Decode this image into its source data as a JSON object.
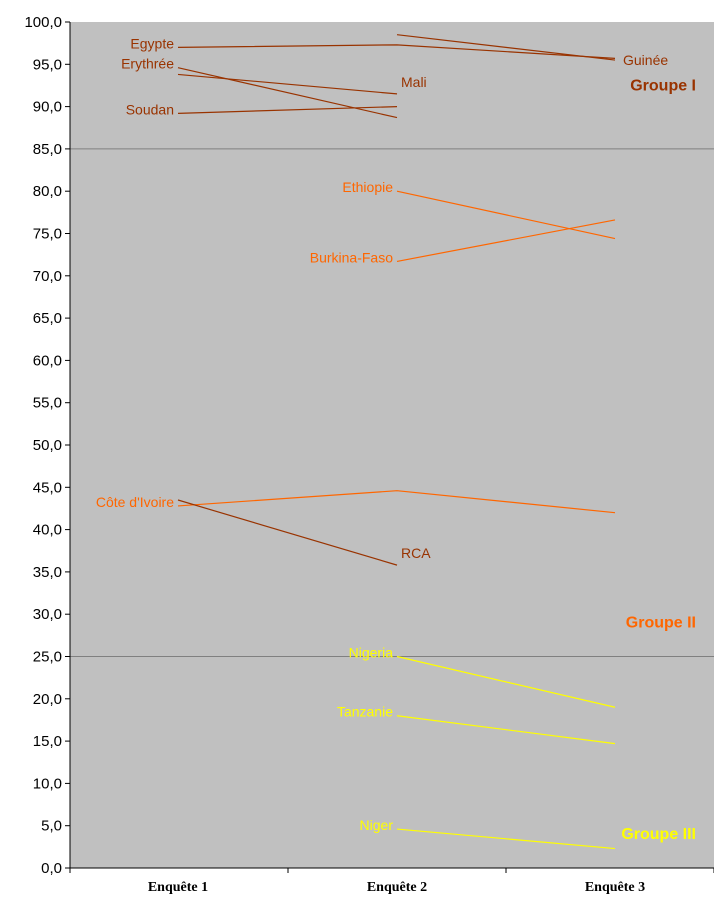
{
  "chart_data": {
    "type": "line",
    "categories": [
      "Enquête 1",
      "Enquête 2",
      "Enquête 3"
    ],
    "ylim": [
      0,
      100
    ],
    "ytick_step": 5,
    "ytick_labels": [
      "0,0",
      "5,0",
      "10,0",
      "15,0",
      "20,0",
      "25,0",
      "30,0",
      "35,0",
      "40,0",
      "45,0",
      "50,0",
      "55,0",
      "60,0",
      "65,0",
      "70,0",
      "75,0",
      "80,0",
      "85,0",
      "90,0",
      "95,0",
      "100,0"
    ],
    "group_separators": [
      85,
      25
    ],
    "background_color": "#c0c0c0",
    "groups": [
      {
        "name": "Groupe I",
        "color": "#993300",
        "label_value": 92.5
      },
      {
        "name": "Groupe II",
        "color": "#ff6600",
        "label_value": 29
      },
      {
        "name": "Groupe III",
        "color": "#ffff00",
        "label_value": 4
      }
    ],
    "series": [
      {
        "name": "Egypte",
        "group": 0,
        "points": [
          [
            0,
            97.0
          ],
          [
            1,
            97.3
          ],
          [
            2,
            95.7
          ]
        ],
        "label_at": 0
      },
      {
        "name": "Erythrée",
        "group": 0,
        "points": [
          [
            0,
            94.6
          ],
          [
            1,
            88.7
          ]
        ],
        "label_at": 0
      },
      {
        "name": "Soudan",
        "group": 0,
        "points": [
          [
            0,
            89.2
          ],
          [
            1,
            90.0
          ]
        ],
        "label_at": 0
      },
      {
        "name": "Mali",
        "group": 0,
        "points": [
          [
            0,
            93.8
          ],
          [
            1,
            91.5
          ]
        ],
        "label_at": 1
      },
      {
        "name": "Guinée",
        "group": 0,
        "points": [
          [
            1,
            98.5
          ],
          [
            2,
            95.5
          ]
        ],
        "label_at": 2
      },
      {
        "name": "Ethiopie",
        "group": 1,
        "points": [
          [
            1,
            80.0
          ],
          [
            2,
            74.4
          ]
        ],
        "label_at": 1
      },
      {
        "name": "Burkina-Faso",
        "group": 1,
        "points": [
          [
            1,
            71.7
          ],
          [
            2,
            76.6
          ]
        ],
        "label_at": 1
      },
      {
        "name": "Côte d'Ivoire",
        "group": 1,
        "points": [
          [
            0,
            42.8
          ],
          [
            1,
            44.6
          ],
          [
            2,
            42.0
          ]
        ],
        "label_at": 0
      },
      {
        "name": "RCA",
        "group": 0,
        "points": [
          [
            0,
            43.5
          ],
          [
            1,
            35.8
          ]
        ],
        "label_at": 1
      },
      {
        "name": "Nigeria",
        "group": 2,
        "points": [
          [
            1,
            25.0
          ],
          [
            2,
            19.0
          ]
        ],
        "label_at": 1
      },
      {
        "name": "Tanzanie",
        "group": 2,
        "points": [
          [
            1,
            18.0
          ],
          [
            2,
            14.7
          ]
        ],
        "label_at": 1
      },
      {
        "name": "Niger",
        "group": 2,
        "points": [
          [
            1,
            4.6
          ],
          [
            2,
            2.3
          ]
        ],
        "label_at": 1
      }
    ]
  }
}
